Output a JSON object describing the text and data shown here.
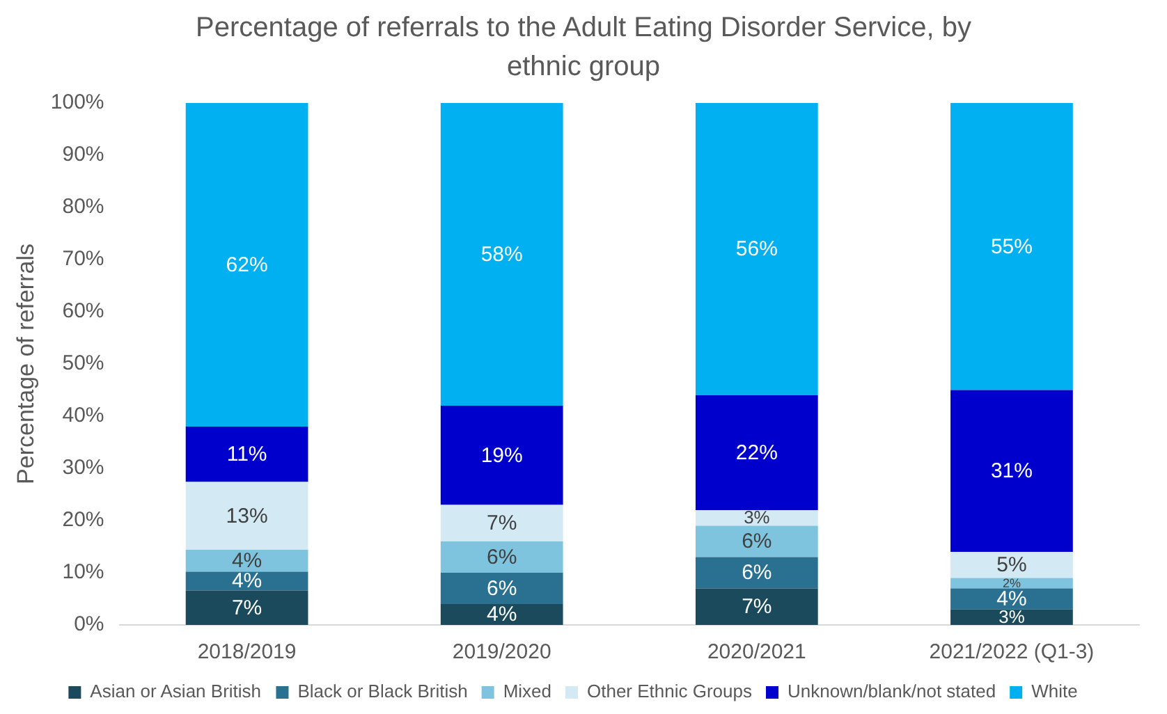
{
  "chart_data": {
    "type": "bar",
    "stacked": true,
    "title": "Percentage of referrals to the Adult Eating Disorder Service, by ethnic group",
    "ylabel": "Percentage of referrals",
    "categories": [
      "2018/2019",
      "2019/2020",
      "2020/2021",
      "2021/2022 (Q1-3)"
    ],
    "ylim": [
      0,
      100
    ],
    "yticks": [
      {
        "value": 0,
        "label": "0%"
      },
      {
        "value": 10,
        "label": "10%"
      },
      {
        "value": 20,
        "label": "20%"
      },
      {
        "value": 30,
        "label": "30%"
      },
      {
        "value": 40,
        "label": "40%"
      },
      {
        "value": 50,
        "label": "50%"
      },
      {
        "value": 60,
        "label": "60%"
      },
      {
        "value": 70,
        "label": "70%"
      },
      {
        "value": 80,
        "label": "80%"
      },
      {
        "value": 90,
        "label": "90%"
      },
      {
        "value": 100,
        "label": "100%"
      }
    ],
    "grid": false,
    "legend": "bottom",
    "series": [
      {
        "name": "Asian or Asian British",
        "color": "#1b4a5c",
        "values": [
          6.6,
          4,
          7,
          3
        ],
        "value_labels": [
          "7%",
          "4%",
          "7%",
          "3%"
        ]
      },
      {
        "name": "Black or Black British",
        "color": "#2a7191",
        "values": [
          3.6,
          6,
          6,
          4
        ],
        "value_labels": [
          "4%",
          "6%",
          "6%",
          "4%"
        ]
      },
      {
        "name": "Mixed",
        "color": "#7fc4de",
        "values": [
          4.2,
          6,
          6,
          2
        ],
        "value_labels": [
          "4%",
          "6%",
          "6%",
          "2%"
        ]
      },
      {
        "name": "Other Ethnic Groups",
        "color": "#d3e9f3",
        "values": [
          13,
          7,
          3,
          5
        ],
        "value_labels": [
          "13%",
          "7%",
          "3%",
          "5%"
        ]
      },
      {
        "name": "Unknown/blank/not stated",
        "color": "#0000cc",
        "values": [
          10.6,
          19,
          22,
          31
        ],
        "value_labels": [
          "11%",
          "19%",
          "22%",
          "31%"
        ]
      },
      {
        "name": "White",
        "color": "#00b0f0",
        "values": [
          62,
          58,
          56,
          55
        ],
        "value_labels": [
          "62%",
          "58%",
          "56%",
          "55%"
        ]
      }
    ]
  }
}
